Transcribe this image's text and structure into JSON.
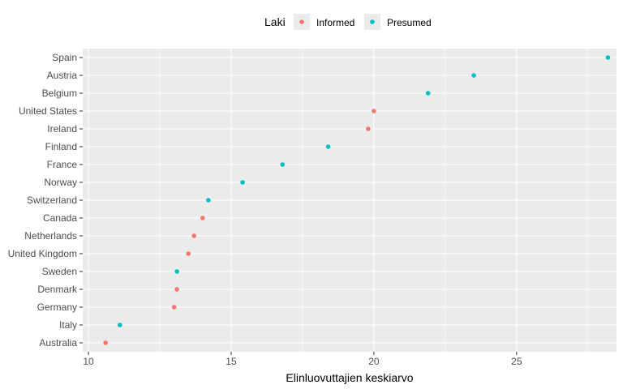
{
  "chart_data": {
    "type": "scatter",
    "xlabel": "Elinluovuttajien keskiarvo",
    "ylabel": "",
    "xlim": [
      9.8,
      28.5
    ],
    "x_ticks": [
      10,
      15,
      20,
      25
    ],
    "grid": true,
    "legend": {
      "title": "Laki",
      "position": "top",
      "entries": [
        {
          "label": "Informed",
          "color": "#F8766D"
        },
        {
          "label": "Presumed",
          "color": "#00BFC4"
        }
      ]
    },
    "categories": [
      "Spain",
      "Austria",
      "Belgium",
      "United States",
      "Ireland",
      "Finland",
      "France",
      "Norway",
      "Switzerland",
      "Canada",
      "Netherlands",
      "United Kingdom",
      "Sweden",
      "Denmark",
      "Germany",
      "Italy",
      "Australia"
    ],
    "points": [
      {
        "country": "Spain",
        "value": 28.2,
        "law": "Presumed"
      },
      {
        "country": "Austria",
        "value": 23.5,
        "law": "Presumed"
      },
      {
        "country": "Belgium",
        "value": 21.9,
        "law": "Presumed"
      },
      {
        "country": "United States",
        "value": 20.0,
        "law": "Informed"
      },
      {
        "country": "Ireland",
        "value": 19.8,
        "law": "Informed"
      },
      {
        "country": "Finland",
        "value": 18.4,
        "law": "Presumed"
      },
      {
        "country": "France",
        "value": 16.8,
        "law": "Presumed"
      },
      {
        "country": "Norway",
        "value": 15.4,
        "law": "Presumed"
      },
      {
        "country": "Switzerland",
        "value": 14.2,
        "law": "Presumed"
      },
      {
        "country": "Canada",
        "value": 14.0,
        "law": "Informed"
      },
      {
        "country": "Netherlands",
        "value": 13.7,
        "law": "Informed"
      },
      {
        "country": "United Kingdom",
        "value": 13.5,
        "law": "Informed"
      },
      {
        "country": "Sweden",
        "value": 13.1,
        "law": "Presumed"
      },
      {
        "country": "Denmark",
        "value": 13.1,
        "law": "Informed"
      },
      {
        "country": "Germany",
        "value": 13.0,
        "law": "Informed"
      },
      {
        "country": "Italy",
        "value": 11.1,
        "law": "Presumed"
      },
      {
        "country": "Australia",
        "value": 10.6,
        "law": "Informed"
      }
    ],
    "colors": {
      "Informed": "#F8766D",
      "Presumed": "#00BFC4",
      "panel": "#EBEBEB",
      "grid": "#FFFFFF"
    }
  }
}
